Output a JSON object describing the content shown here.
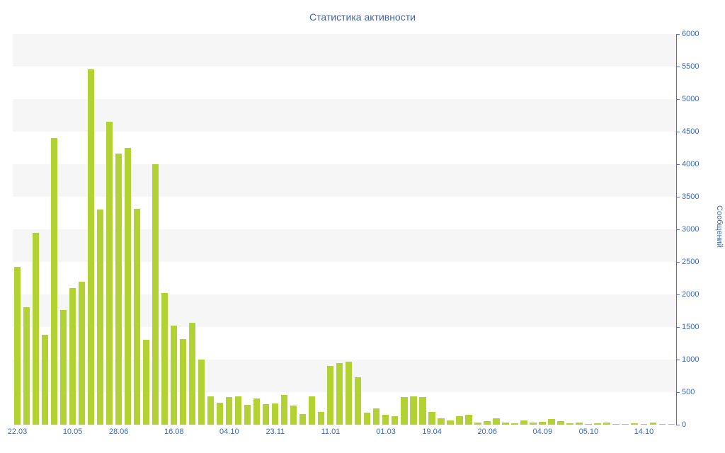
{
  "chart_data": {
    "type": "bar",
    "title": "Статистика активности",
    "ylabel": "Сообщений",
    "xlabel": "",
    "ylim": [
      0,
      6000
    ],
    "ytick_step": 500,
    "yticks": [
      0,
      500,
      1000,
      1500,
      2000,
      2500,
      3000,
      3500,
      4000,
      4500,
      5000,
      5500,
      6000
    ],
    "grid": "horizontal-bands",
    "legend_position": "none",
    "bar_color": "#b2d233",
    "stripe_color": "#f6f6f7",
    "axis_color": "#4a74c0",
    "text_color": "#3f68b0",
    "title_color": "#44639e",
    "values": [
      2420,
      1800,
      2950,
      1380,
      4400,
      1760,
      2100,
      2200,
      5460,
      3300,
      4650,
      4160,
      4250,
      3310,
      1300,
      4000,
      2020,
      1520,
      1310,
      1560,
      1000,
      430,
      340,
      420,
      430,
      300,
      400,
      310,
      330,
      460,
      290,
      160,
      440,
      200,
      900,
      950,
      970,
      730,
      180,
      250,
      150,
      130,
      420,
      430,
      420,
      200,
      100,
      60,
      130,
      150,
      35,
      50,
      100,
      30,
      25,
      70,
      30,
      45,
      90,
      55,
      20,
      35,
      15,
      25,
      35,
      15,
      10,
      20,
      10,
      30,
      10,
      15
    ],
    "xticks": [
      {
        "label": "22.03",
        "index": 0
      },
      {
        "label": "10.05",
        "index": 6
      },
      {
        "label": "28.06",
        "index": 11
      },
      {
        "label": "16.08",
        "index": 17
      },
      {
        "label": "04.10",
        "index": 23
      },
      {
        "label": "23.11",
        "index": 28
      },
      {
        "label": "11.01",
        "index": 34
      },
      {
        "label": "01.03",
        "index": 40
      },
      {
        "label": "19.04",
        "index": 45
      },
      {
        "label": "20.06",
        "index": 51
      },
      {
        "label": "04.09",
        "index": 57
      },
      {
        "label": "05.10",
        "index": 62
      },
      {
        "label": "14.10",
        "index": 68
      }
    ]
  }
}
